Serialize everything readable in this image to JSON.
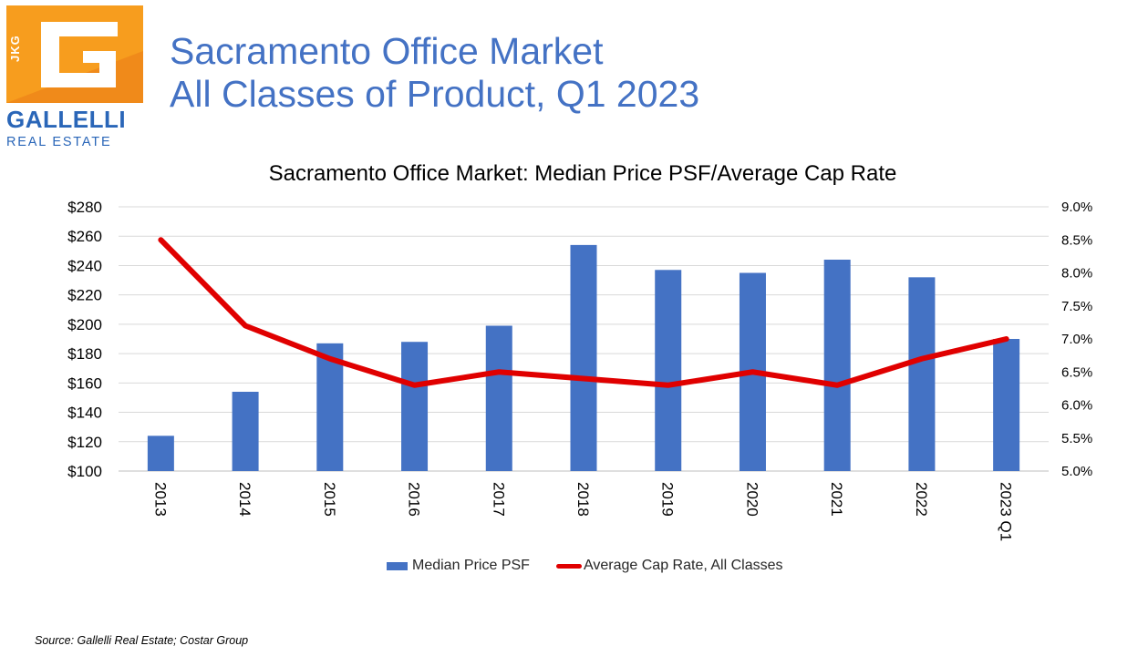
{
  "logo": {
    "side_text": "JKG",
    "name": "GALLELLI",
    "sub": "REAL ESTATE",
    "colors": {
      "orange": "#f5a01f",
      "blue": "#2a66b8"
    }
  },
  "header": {
    "title_line1": "Sacramento Office Market",
    "title_line2": "All Classes of Product, Q1 2023"
  },
  "chart_data": {
    "type": "bar",
    "title": "Sacramento Office Market: Median Price PSF/Average Cap Rate",
    "categories": [
      "2013",
      "2014",
      "2015",
      "2016",
      "2017",
      "2018",
      "2019",
      "2020",
      "2021",
      "2022",
      "2023 Q1"
    ],
    "series": [
      {
        "name": "Median Price PSF",
        "type": "bar",
        "axis": "left",
        "color": "#4472c4",
        "values": [
          124,
          154,
          187,
          188,
          199,
          254,
          237,
          235,
          244,
          232,
          190
        ]
      },
      {
        "name": "Average Cap Rate, All Classes",
        "type": "line",
        "axis": "right",
        "color": "#e00000",
        "values": [
          8.5,
          7.2,
          6.7,
          6.3,
          6.5,
          6.4,
          6.3,
          6.5,
          6.3,
          6.7,
          7.0
        ]
      }
    ],
    "y_left": {
      "range": [
        100,
        280
      ],
      "ticks": [
        100,
        120,
        140,
        160,
        180,
        200,
        220,
        240,
        260,
        280
      ],
      "tick_labels": [
        "$100",
        "$120",
        "$140",
        "$160",
        "$180",
        "$200",
        "$220",
        "$240",
        "$260",
        "$280"
      ]
    },
    "y_right": {
      "range": [
        5.0,
        9.0
      ],
      "ticks": [
        5.0,
        5.5,
        6.0,
        6.5,
        7.0,
        7.5,
        8.0,
        8.5,
        9.0
      ],
      "tick_labels": [
        "5.0%",
        "5.5%",
        "6.0%",
        "6.5%",
        "7.0%",
        "7.5%",
        "8.0%",
        "8.5%",
        "9.0%"
      ]
    },
    "grid": true,
    "legend_position": "bottom"
  },
  "footer": {
    "source": "Source: Gallelli Real Estate; Costar Group"
  }
}
